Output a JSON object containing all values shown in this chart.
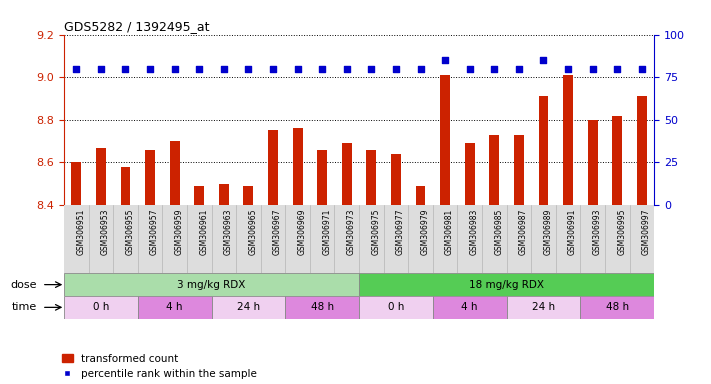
{
  "title": "GDS5282 / 1392495_at",
  "samples": [
    "GSM306951",
    "GSM306953",
    "GSM306955",
    "GSM306957",
    "GSM306959",
    "GSM306961",
    "GSM306963",
    "GSM306965",
    "GSM306967",
    "GSM306969",
    "GSM306971",
    "GSM306973",
    "GSM306975",
    "GSM306977",
    "GSM306979",
    "GSM306981",
    "GSM306983",
    "GSM306985",
    "GSM306987",
    "GSM306989",
    "GSM306991",
    "GSM306993",
    "GSM306995",
    "GSM306997"
  ],
  "bar_values": [
    8.6,
    8.67,
    8.58,
    8.66,
    8.7,
    8.49,
    8.5,
    8.49,
    8.75,
    8.76,
    8.66,
    8.69,
    8.66,
    8.64,
    8.49,
    9.01,
    8.69,
    8.73,
    8.73,
    8.91,
    9.01,
    8.8,
    8.82,
    8.91
  ],
  "percentile_rank": [
    80,
    80,
    80,
    80,
    80,
    80,
    80,
    80,
    80,
    80,
    80,
    80,
    80,
    80,
    80,
    85,
    80,
    80,
    80,
    85,
    80,
    80,
    80,
    80
  ],
  "bar_color": "#cc2200",
  "dot_color": "#0000cc",
  "ylim_left": [
    8.4,
    9.2
  ],
  "yticks_left": [
    8.4,
    8.6,
    8.8,
    9.0,
    9.2
  ],
  "ylim_right": [
    0,
    100
  ],
  "yticks_right": [
    0,
    25,
    50,
    75,
    100
  ],
  "dose_groups": [
    {
      "label": "3 mg/kg RDX",
      "start": 0,
      "end": 12,
      "color": "#aaddaa"
    },
    {
      "label": "18 mg/kg RDX",
      "start": 12,
      "end": 24,
      "color": "#55cc55"
    }
  ],
  "time_groups": [
    {
      "label": "0 h",
      "start": 0,
      "end": 3,
      "color": "#f0d0f0"
    },
    {
      "label": "4 h",
      "start": 3,
      "end": 6,
      "color": "#dd88dd"
    },
    {
      "label": "24 h",
      "start": 6,
      "end": 9,
      "color": "#f0d0f0"
    },
    {
      "label": "48 h",
      "start": 9,
      "end": 12,
      "color": "#dd88dd"
    },
    {
      "label": "0 h",
      "start": 12,
      "end": 15,
      "color": "#f0d0f0"
    },
    {
      "label": "4 h",
      "start": 15,
      "end": 18,
      "color": "#dd88dd"
    },
    {
      "label": "24 h",
      "start": 18,
      "end": 21,
      "color": "#f0d0f0"
    },
    {
      "label": "48 h",
      "start": 21,
      "end": 24,
      "color": "#dd88dd"
    }
  ],
  "legend_bar_label": "transformed count",
  "legend_dot_label": "percentile rank within the sample",
  "dose_label": "dose",
  "time_label": "time",
  "grid_color": "#000000",
  "axis_color_left": "#cc2200",
  "axis_color_right": "#0000cc",
  "xticklabel_bg": "#dddddd",
  "bar_width": 0.4
}
